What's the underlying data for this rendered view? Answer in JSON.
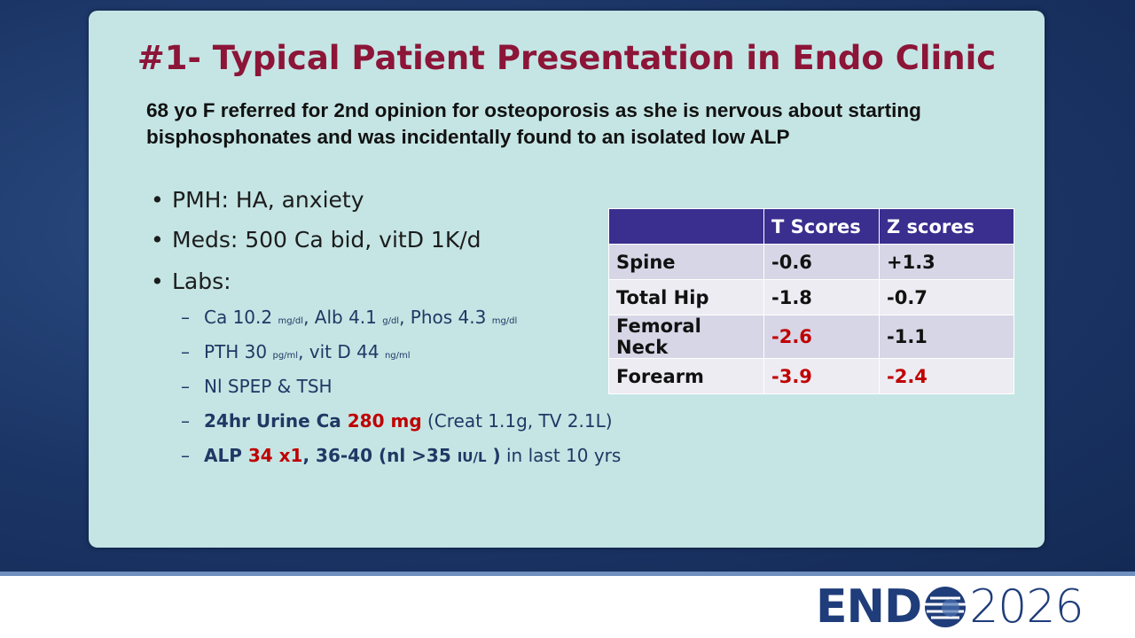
{
  "title": "#1- Typical Patient Presentation in Endo Clinic",
  "intro": [
    "68 yo F referred for 2nd opinion for osteoporosis as she is nervous about starting",
    "bisphosphonates and was incidentally found to an isolated low ALP"
  ],
  "bullets": [
    "PMH: HA, anxiety",
    "Meds: 500 Ca bid, vitD 1K/d",
    "Labs:"
  ],
  "sub_bullets": [
    [
      "Ca 10.2 ",
      "mg/dl",
      ", Alb 4.1 ",
      "g/dl",
      ", Phos 4.3 ",
      "mg/dl"
    ],
    [
      "PTH 30 ",
      "pg/ml",
      ", vit D 44 ",
      "ng/ml"
    ],
    [
      "Nl SPEP & TSH"
    ],
    [
      "24hr Urine Ca ",
      "280 mg",
      " (Creat 1.1g, TV 2.1L)"
    ],
    [
      "ALP ",
      "34 x1",
      ", 36-40 (nl >35 ",
      "IU/L",
      " )",
      " in last 10 yrs"
    ]
  ],
  "table": {
    "header": [
      "T Scores",
      "Z scores"
    ],
    "rows": [
      [
        "Spine",
        "-0.6",
        "+1.3"
      ],
      [
        "Total Hip",
        "-1.8",
        "-0.7"
      ],
      [
        "Femoral Neck",
        "-2.6",
        "-1.1"
      ],
      [
        "Forearm",
        "-3.9",
        "-2.4"
      ]
    ]
  },
  "logo": {
    "name": "END",
    "year": "2026"
  }
}
